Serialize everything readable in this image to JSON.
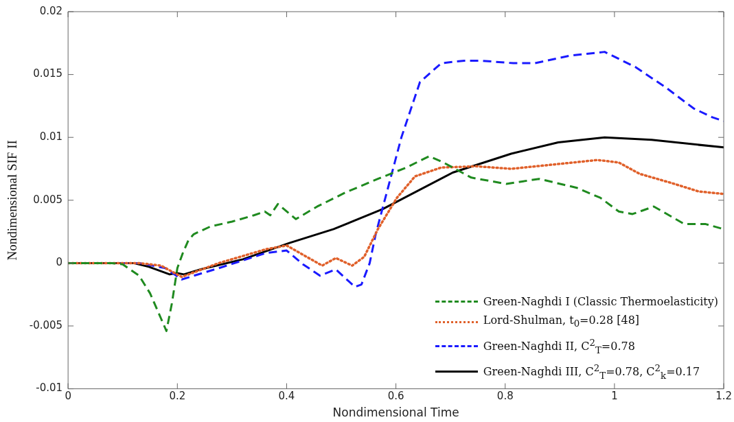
{
  "chart_data": {
    "type": "line",
    "xlabel": "Nondimensional Time",
    "ylabel": "Nondimensional SIF II",
    "xlim": [
      0,
      1.2
    ],
    "xticks": [
      0,
      0.2,
      0.4,
      0.6,
      0.8,
      1,
      1.2
    ],
    "ylim": [
      -0.01,
      0.02
    ],
    "yticks": [
      -0.01,
      -0.005,
      0,
      0.005,
      0.01,
      0.015,
      0.02
    ],
    "grid": false,
    "legend": "bottom right",
    "marker": "none",
    "series": [
      {
        "name": "Green-Naghdi I (Classic Thermoelasticity)",
        "color": "#1f8a1f",
        "line_style": "dashed",
        "x": [
          0,
          0.08,
          0.1,
          0.13,
          0.15,
          0.17,
          0.18,
          0.19,
          0.2,
          0.21,
          0.22,
          0.23,
          0.26,
          0.3,
          0.34,
          0.36,
          0.37,
          0.384,
          0.417,
          0.456,
          0.507,
          0.567,
          0.619,
          0.661,
          0.687,
          0.738,
          0.802,
          0.862,
          0.93,
          0.974,
          1.008,
          1.033,
          1.072,
          1.128,
          1.167,
          1.2
        ],
        "values": [
          0,
          0,
          -0.0001,
          -0.001,
          -0.0024,
          -0.0044,
          -0.0054,
          -0.0032,
          -0.0004,
          0.0008,
          0.0018,
          0.0023,
          0.0029,
          0.0033,
          0.0038,
          0.0041,
          0.0038,
          0.0047,
          0.0035,
          0.0045,
          0.0056,
          0.0067,
          0.0076,
          0.0085,
          0.008,
          0.0068,
          0.0063,
          0.0067,
          0.006,
          0.0052,
          0.0041,
          0.0039,
          0.0045,
          0.0031,
          0.0031,
          0.0027
        ]
      },
      {
        "name": "Lord-Shulman, t$_{0}$=0.28 [48]",
        "color": "#e0602a",
        "line_style": "dotted",
        "x": [
          0,
          0.13,
          0.17,
          0.208,
          0.276,
          0.362,
          0.4,
          0.465,
          0.49,
          0.52,
          0.542,
          0.567,
          0.602,
          0.635,
          0.683,
          0.747,
          0.811,
          0.879,
          0.969,
          1.008,
          1.046,
          1.102,
          1.154,
          1.2
        ],
        "values": [
          0,
          0,
          -0.0002,
          -0.0011,
          0,
          0.0011,
          0.0014,
          -0.0002,
          0.0004,
          -0.0002,
          0.0005,
          0.0027,
          0.0052,
          0.0069,
          0.0076,
          0.0077,
          0.0075,
          0.0078,
          0.0082,
          0.008,
          0.0071,
          0.0064,
          0.0057,
          0.0055
        ]
      },
      {
        "name": "Green-Naghdi II, C$^{2}$$_{T}$=0.78",
        "color": "#1a1aff",
        "line_style": "dashed",
        "x": [
          0,
          0.13,
          0.178,
          0.208,
          0.276,
          0.362,
          0.4,
          0.43,
          0.461,
          0.49,
          0.525,
          0.537,
          0.552,
          0.563,
          0.61,
          0.644,
          0.683,
          0.725,
          0.756,
          0.815,
          0.854,
          0.918,
          0.982,
          1.038,
          1.093,
          1.145,
          1.179,
          1.2
        ],
        "values": [
          0,
          0,
          -0.0004,
          -0.0013,
          -0.0004,
          0.0008,
          0.001,
          -0.0001,
          -0.001,
          -0.0005,
          -0.0019,
          -0.0017,
          0,
          0.0023,
          0.01,
          0.0144,
          0.0159,
          0.0161,
          0.0161,
          0.0159,
          0.0159,
          0.0165,
          0.0168,
          0.0156,
          0.014,
          0.0123,
          0.0116,
          0.0113
        ]
      },
      {
        "name": "Green-Naghdi III, C$^{2}$$_{T}$=0.78, C$^{2}$$_{k}$=0.17",
        "color": "#000000",
        "line_style": "solid",
        "x": [
          0,
          0.12,
          0.148,
          0.186,
          0.199,
          0.212,
          0.243,
          0.32,
          0.405,
          0.486,
          0.576,
          0.704,
          0.811,
          0.897,
          0.982,
          1.068,
          1.2
        ],
        "values": [
          0,
          0,
          -0.0003,
          -0.0009,
          -0.0008,
          -0.0009,
          -0.0005,
          0.0003,
          0.0016,
          0.0027,
          0.0043,
          0.0072,
          0.0087,
          0.0096,
          0.01,
          0.0098,
          0.0092
        ]
      }
    ]
  }
}
